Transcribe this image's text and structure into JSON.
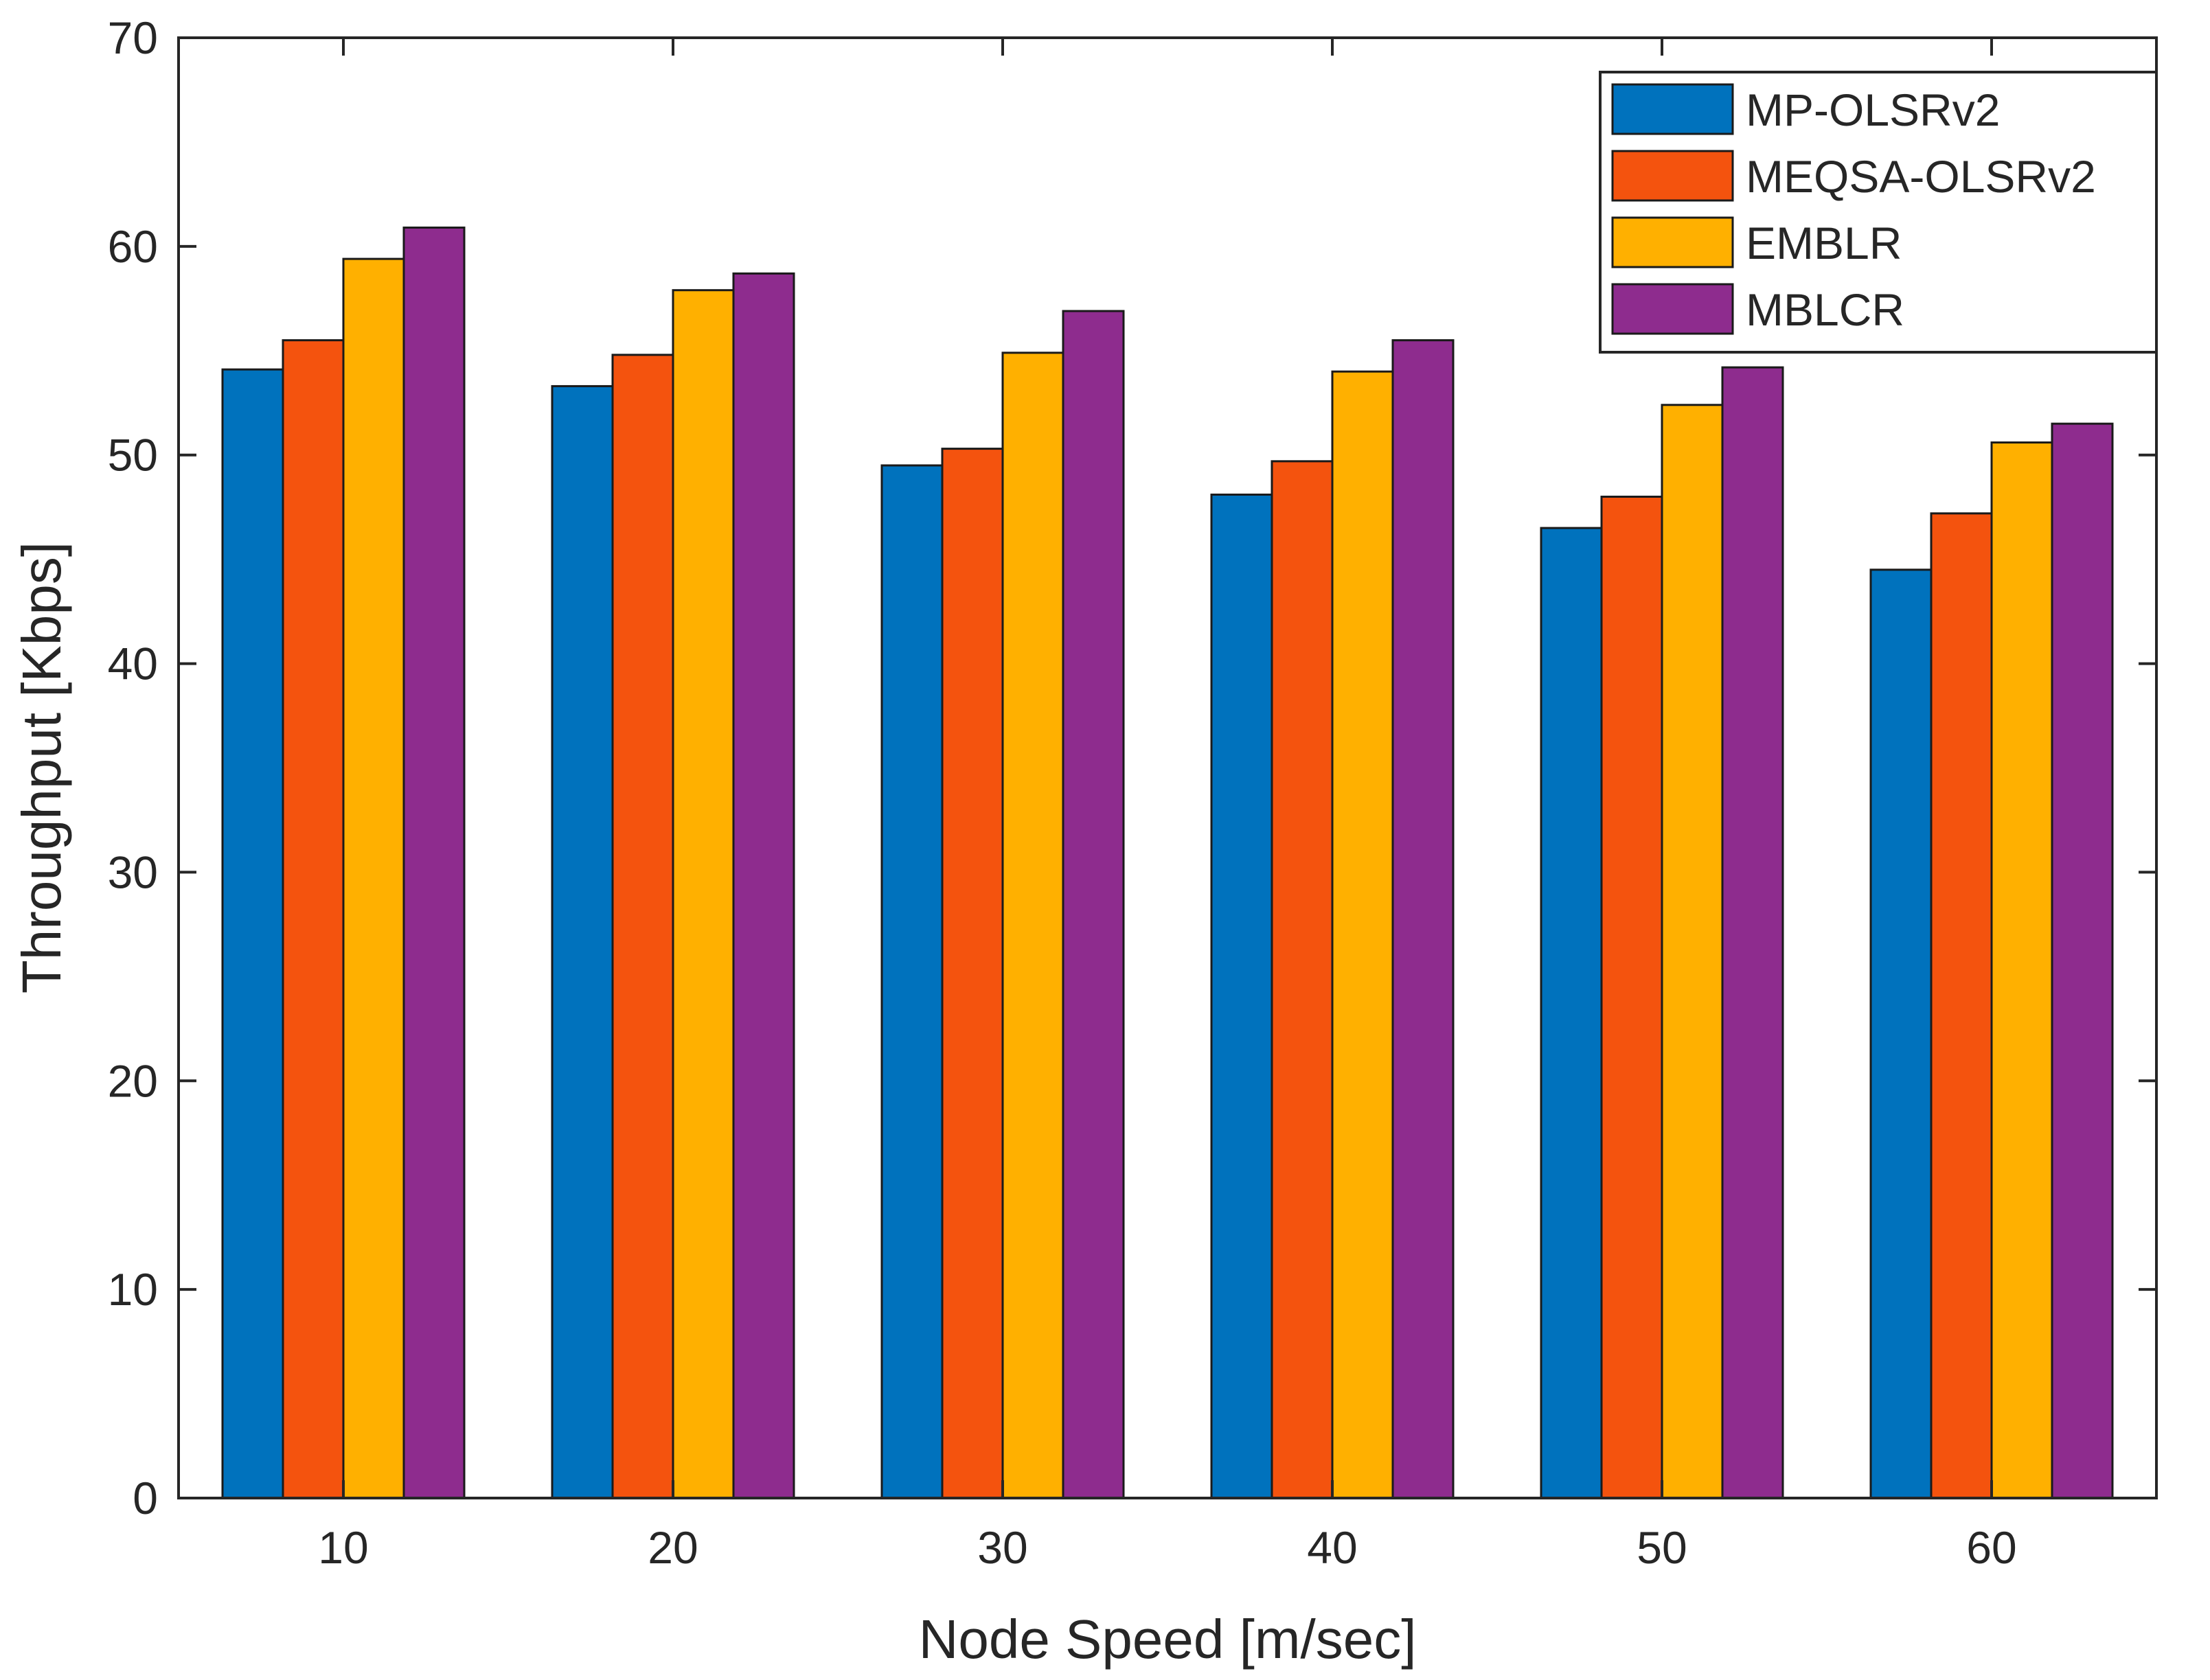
{
  "chart_data": {
    "type": "bar",
    "title": "",
    "xlabel": "Node Speed [m/sec]",
    "ylabel": "Throughput [Kbps]",
    "ylim": [
      0,
      70
    ],
    "yticks": [
      0,
      10,
      20,
      30,
      40,
      50,
      60,
      70
    ],
    "categories": [
      "10",
      "20",
      "30",
      "40",
      "50",
      "60"
    ],
    "series": [
      {
        "name": "MP-OLSRv2",
        "color": "#0072BD",
        "values": [
          54.1,
          53.3,
          49.5,
          48.1,
          46.5,
          44.5
        ]
      },
      {
        "name": "MEQSA-OLSRv2",
        "color": "#F4530E",
        "values": [
          55.5,
          54.8,
          50.3,
          49.7,
          48.0,
          47.2
        ]
      },
      {
        "name": "EMBLR",
        "color": "#FFB000",
        "values": [
          59.4,
          57.9,
          54.9,
          54.0,
          52.4,
          50.6
        ]
      },
      {
        "name": "MBLCR",
        "color": "#8E2C8E",
        "values": [
          60.9,
          58.7,
          56.9,
          55.5,
          54.2,
          51.5
        ]
      }
    ],
    "grid": false,
    "legend_position": "top-right"
  }
}
